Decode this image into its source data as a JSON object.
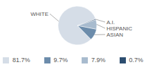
{
  "chart_data": {
    "type": "pie",
    "categories": [
      "WHITE",
      "ASIAN",
      "HISPANIC",
      "A.I."
    ],
    "values": [
      81.7,
      9.7,
      7.9,
      0.7
    ],
    "value_labels": [
      "81.7%",
      "9.7%",
      "7.9%",
      "0.7%"
    ],
    "colors": [
      "#d5dde7",
      "#6c8cab",
      "#a8bbce",
      "#2d4e70"
    ]
  }
}
